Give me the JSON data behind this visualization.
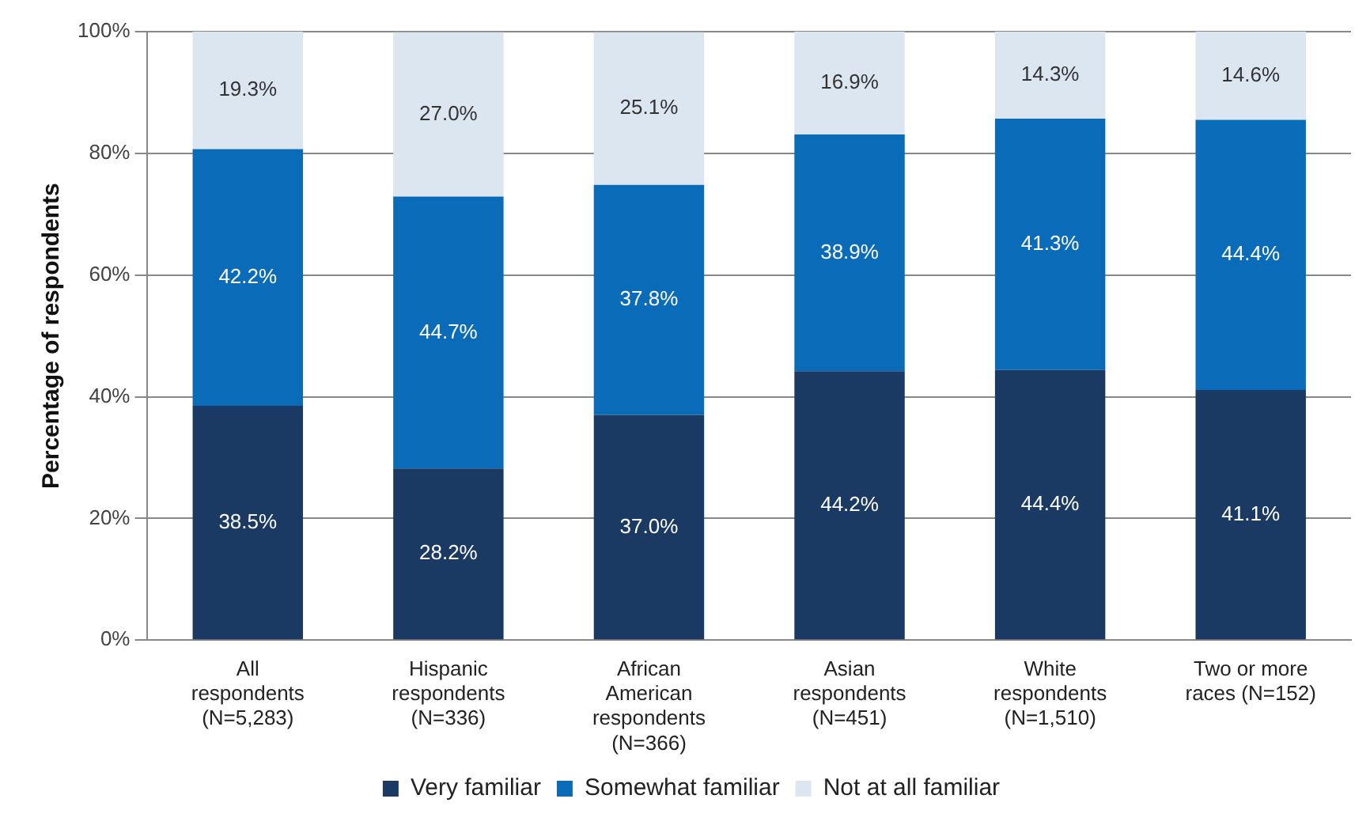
{
  "chart_data": {
    "type": "bar",
    "stacked": true,
    "ylabel": "Percentage of respondents",
    "categories": [
      "All respondents (N=5,283)",
      "Hispanic respondents (N=336)",
      "African American respondents (N=366)",
      "Asian respondents (N=451)",
      "White respondents (N=1,510)",
      "Two or more races (N=152)"
    ],
    "series": [
      {
        "name": "Very familiar",
        "color": "#1b3a63",
        "values": [
          38.5,
          28.2,
          37.0,
          44.2,
          44.4,
          41.1
        ],
        "value_labels": [
          "38.5%",
          "28.2%",
          "37.0%",
          "44.2%",
          "44.4%",
          "41.1%"
        ]
      },
      {
        "name": "Somewhat familiar",
        "color": "#0a6cb8",
        "values": [
          42.2,
          44.7,
          37.8,
          38.9,
          41.3,
          44.4
        ],
        "value_labels": [
          "42.2%",
          "44.7%",
          "37.8%",
          "38.9%",
          "41.3%",
          "44.4%"
        ]
      },
      {
        "name": "Not at all familiar",
        "color": "#dce6f1",
        "values": [
          19.3,
          27.0,
          25.1,
          16.9,
          14.3,
          14.6
        ],
        "value_labels": [
          "19.3%",
          "27.0%",
          "25.1%",
          "16.9%",
          "14.3%",
          "14.6%"
        ]
      }
    ],
    "ylim": [
      0,
      100
    ],
    "yticks": [
      {
        "value": 0,
        "label": "0%"
      },
      {
        "value": 20,
        "label": "20%"
      },
      {
        "value": 40,
        "label": "40%"
      },
      {
        "value": 60,
        "label": "60%"
      },
      {
        "value": 80,
        "label": "80%"
      },
      {
        "value": 100,
        "label": "100%"
      }
    ],
    "grid": "y",
    "legend": "bottom"
  }
}
